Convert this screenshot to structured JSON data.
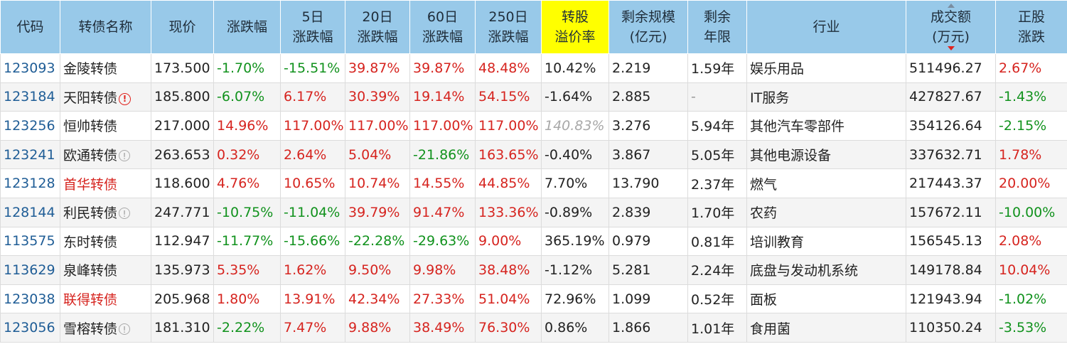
{
  "headers": {
    "code": "代码",
    "name": "转债名称",
    "price": "现价",
    "change": "涨跌幅",
    "d5_l1": "5日",
    "d5_l2": "涨跌幅",
    "d20_l1": "20日",
    "d20_l2": "涨跌幅",
    "d60_l1": "60日",
    "d60_l2": "涨跌幅",
    "d250_l1": "250日",
    "d250_l2": "涨跌幅",
    "premium_l1": "转股",
    "premium_l2": "溢价率",
    "remaining_l1": "剩余规模",
    "remaining_l2": "(亿元)",
    "years_l1": "剩余",
    "years_l2": "年限",
    "industry": "行业",
    "turnover_l1": "成交额",
    "turnover_l2": "(万元)",
    "stock_l1": "正股",
    "stock_l2": "涨跌"
  },
  "colors": {
    "header_bg": "#98c9e9",
    "highlight": "#ffff00",
    "up": "#d6241f",
    "down": "#11921d",
    "code": "#1f5d96"
  },
  "rows": [
    {
      "code": "123093",
      "name": "金陵转债",
      "name_red": false,
      "icon": "",
      "price": "173.500",
      "change": "-1.70%",
      "d5": "-15.51%",
      "d20": "39.87%",
      "d60": "39.87%",
      "d250": "48.48%",
      "premium": "10.42%",
      "premium_style": "",
      "remaining": "2.219",
      "years": "1.59年",
      "industry": "娱乐用品",
      "turnover": "511496.27",
      "stock": "2.67%"
    },
    {
      "code": "123184",
      "name": "天阳转债",
      "name_red": false,
      "icon": "warn",
      "price": "185.800",
      "change": "-6.07%",
      "d5": "6.17%",
      "d20": "30.39%",
      "d60": "19.14%",
      "d250": "54.15%",
      "premium": "-1.64%",
      "premium_style": "",
      "remaining": "2.885",
      "years": "-",
      "industry": "IT服务",
      "turnover": "427827.67",
      "stock": "-1.43%"
    },
    {
      "code": "123256",
      "name": "恒帅转债",
      "name_red": false,
      "icon": "",
      "price": "217.000",
      "change": "14.96%",
      "d5": "117.00%",
      "d20": "117.00%",
      "d60": "117.00%",
      "d250": "117.00%",
      "premium": "140.83%",
      "premium_style": "gray-it",
      "remaining": "3.276",
      "years": "5.94年",
      "industry": "其他汽车零部件",
      "turnover": "354126.64",
      "stock": "-2.15%"
    },
    {
      "code": "123241",
      "name": "欧通转债",
      "name_red": false,
      "icon": "info",
      "price": "263.653",
      "change": "0.32%",
      "d5": "2.64%",
      "d20": "5.04%",
      "d60": "-21.86%",
      "d250": "163.65%",
      "premium": "-0.40%",
      "premium_style": "",
      "remaining": "3.867",
      "years": "5.05年",
      "industry": "其他电源设备",
      "turnover": "337632.71",
      "stock": "1.78%"
    },
    {
      "code": "123128",
      "name": "首华转债",
      "name_red": true,
      "icon": "",
      "price": "118.600",
      "change": "4.76%",
      "d5": "10.65%",
      "d20": "10.74%",
      "d60": "14.55%",
      "d250": "44.85%",
      "premium": "7.70%",
      "premium_style": "",
      "remaining": "13.790",
      "years": "2.37年",
      "industry": "燃气",
      "turnover": "217443.37",
      "stock": "20.00%"
    },
    {
      "code": "128144",
      "name": "利民转债",
      "name_red": false,
      "icon": "info",
      "price": "247.771",
      "change": "-10.75%",
      "d5": "-11.04%",
      "d20": "39.79%",
      "d60": "91.47%",
      "d250": "133.36%",
      "premium": "-0.89%",
      "premium_style": "",
      "remaining": "2.839",
      "years": "1.70年",
      "industry": "农药",
      "turnover": "157672.11",
      "stock": "-10.00%"
    },
    {
      "code": "113575",
      "name": "东时转债",
      "name_red": false,
      "icon": "",
      "price": "112.947",
      "change": "-11.77%",
      "d5": "-15.66%",
      "d20": "-22.28%",
      "d60": "-29.63%",
      "d250": "9.00%",
      "premium": "365.19%",
      "premium_style": "",
      "remaining": "0.979",
      "years": "0.81年",
      "industry": "培训教育",
      "turnover": "156545.13",
      "stock": "2.08%"
    },
    {
      "code": "113629",
      "name": "泉峰转债",
      "name_red": false,
      "icon": "",
      "price": "135.973",
      "change": "5.35%",
      "d5": "1.62%",
      "d20": "9.50%",
      "d60": "9.98%",
      "d250": "38.48%",
      "premium": "-1.12%",
      "premium_style": "",
      "remaining": "5.281",
      "years": "2.24年",
      "industry": "底盘与发动机系统",
      "turnover": "149178.84",
      "stock": "10.04%"
    },
    {
      "code": "123038",
      "name": "联得转债",
      "name_red": true,
      "icon": "",
      "price": "205.968",
      "change": "1.80%",
      "d5": "13.91%",
      "d20": "42.34%",
      "d60": "27.33%",
      "d250": "51.04%",
      "premium": "72.96%",
      "premium_style": "",
      "remaining": "1.099",
      "years": "0.52年",
      "industry": "面板",
      "turnover": "121943.94",
      "stock": "-1.02%"
    },
    {
      "code": "123056",
      "name": "雪榕转债",
      "name_red": false,
      "icon": "info",
      "price": "181.310",
      "change": "-2.22%",
      "d5": "7.47%",
      "d20": "9.88%",
      "d60": "38.49%",
      "d250": "76.30%",
      "premium": "0.86%",
      "premium_style": "",
      "remaining": "1.866",
      "years": "1.01年",
      "industry": "食用菌",
      "turnover": "110350.24",
      "stock": "-3.53%"
    }
  ]
}
